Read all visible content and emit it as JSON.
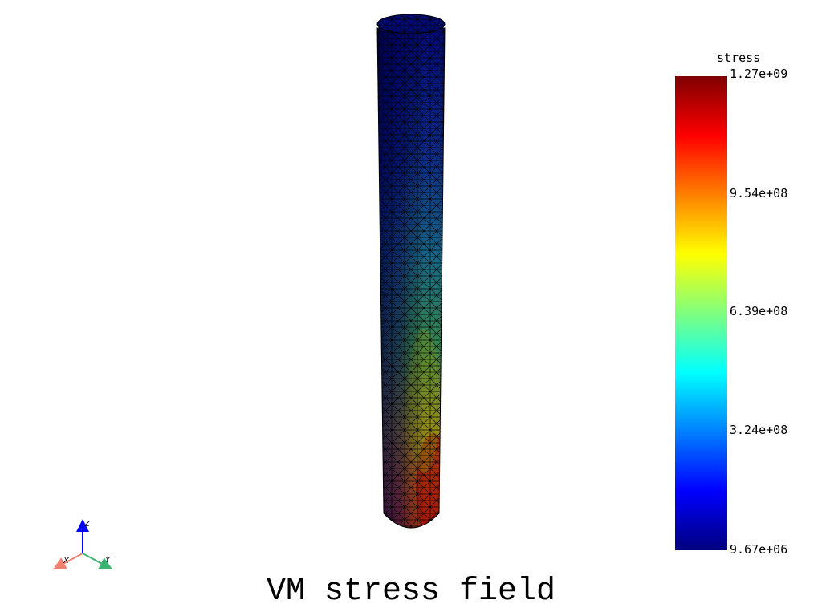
{
  "title": "VM stress field",
  "colorbar": {
    "title": "stress",
    "min": 9670000,
    "max": 1270000000,
    "tick_labels": [
      "1.27e+09",
      "9.54e+08",
      "6.39e+08",
      "3.24e+08",
      "9.67e+06"
    ],
    "colormap": [
      "#00007f",
      "#0000ff",
      "#00ffff",
      "#ffff00",
      "#ff0000",
      "#7f0000"
    ]
  },
  "axes": {
    "x_label": "X",
    "y_label": "Y",
    "z_label": "Z",
    "x_color": "#f08070",
    "y_color": "#3cb371",
    "z_color": "#0000ff"
  },
  "mesh": {
    "shape": "cylinder",
    "edge_color": "#000000"
  }
}
